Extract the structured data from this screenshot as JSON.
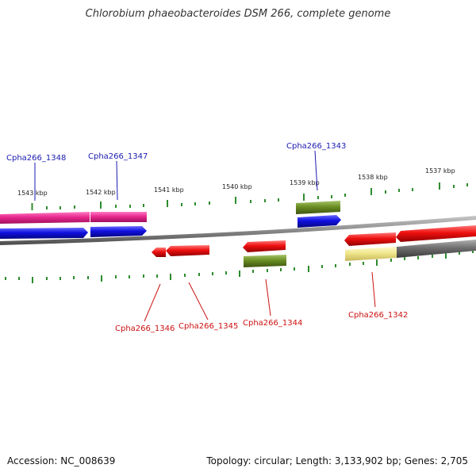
{
  "title": "Chlorobium phaeobacteroides DSM 266, complete genome",
  "footer": {
    "accession": "Accession: NC_008639",
    "stats": "Topology: circular; Length: 3,133,902 bp; Genes: 2,705"
  },
  "tick_labels": [
    "1543 kbp",
    "1542 kbp",
    "1541 kbp",
    "1540 kbp",
    "1539 kbp",
    "1538 kbp",
    "1537 kbp"
  ],
  "gene_labels": {
    "forward": [
      "Cpha266_1348",
      "Cpha266_1347",
      "Cpha266_1343"
    ],
    "reverse": [
      "Cpha266_1346",
      "Cpha266_1345",
      "Cpha266_1344",
      "Cpha266_1342"
    ]
  },
  "colors": {
    "magenta": "#e8288e",
    "blue": "#1010e0",
    "red": "#ee1010",
    "olive": "#6b8e23",
    "pale_yellow": "#f0e68c",
    "gray": "#707070",
    "backbone": "#8a8a8a",
    "tick": "#2e8b2e",
    "forward_label": "#1a1ab0",
    "reverse_label": "#cc1010"
  }
}
